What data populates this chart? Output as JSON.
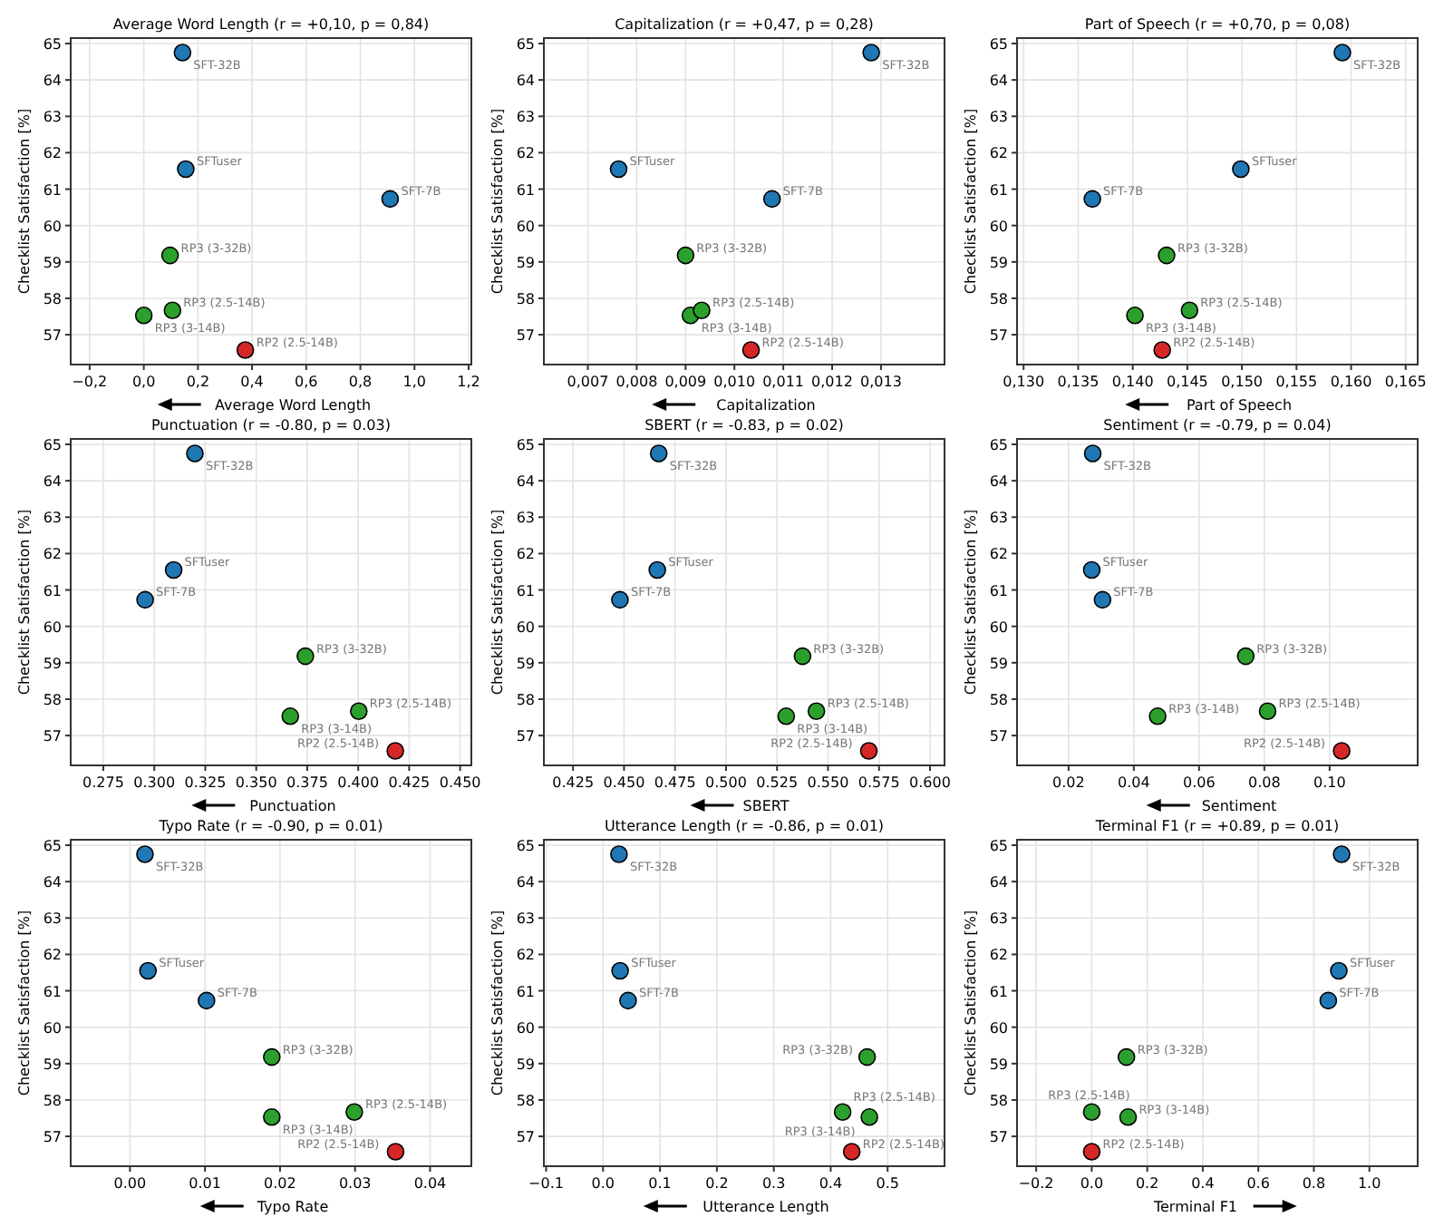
{
  "chart_data": [
    {
      "type": "scatter",
      "title": "Average Word Length   (r = +0,10, p = 0,84)",
      "xlabel": "Average Word Length",
      "ylabel": "Checklist Satisfaction [%]",
      "marker": "circle",
      "grid": true,
      "xlim": [
        -0.27,
        1.21
      ],
      "xticks": [
        {
          "value": -0.2,
          "label": "−0,2"
        },
        {
          "value": 0,
          "label": "0,0"
        },
        {
          "value": 0.2,
          "label": "0,2"
        },
        {
          "value": 0.4,
          "label": "0,4"
        },
        {
          "value": 0.6,
          "label": "0,6"
        },
        {
          "value": 0.8,
          "label": "0,8"
        },
        {
          "value": 1,
          "label": "1,0"
        },
        {
          "value": 1.2,
          "label": "1,2"
        }
      ],
      "ylim": [
        56.18,
        65.15
      ],
      "yticks": [
        57,
        58,
        59,
        60,
        61,
        62,
        63,
        64,
        65
      ],
      "series": [
        {
          "x": [
            0.143,
            0.155,
            0.91,
            0.097,
            0.0,
            0.106,
            0.375
          ],
          "values": [
            64.75,
            61.55,
            60.73,
            59.18,
            57.53,
            57.67,
            56.58
          ],
          "colors": [
            "#1f77b4",
            "#1f77b4",
            "#1f77b4",
            "#2ca02c",
            "#2ca02c",
            "#2ca02c",
            "#d62728"
          ]
        }
      ],
      "annotations": [
        {
          "text": "SFT-32B",
          "x": 0.143,
          "y": 64.75
        },
        {
          "text": "SFTuser",
          "x": 0.155,
          "y": 61.55
        },
        {
          "text": "SFT-7B",
          "x": 0.91,
          "y": 60.73
        },
        {
          "text": "RP3 (3-32B)",
          "x": 0.097,
          "y": 59.18
        },
        {
          "text": "RP3 (3-14B)",
          "x": 0.0,
          "y": 57.53
        },
        {
          "text": "RP3 (2.5-14B)",
          "x": 0.106,
          "y": 57.67
        },
        {
          "text": "RP2 (2.5-14B)",
          "x": 0.375,
          "y": 56.58
        }
      ]
    },
    {
      "type": "scatter",
      "title": "Capitalization   (r = +0,47, p = 0,28)",
      "xlabel": "Capitalization",
      "ylabel": "Checklist Satisfaction [%]",
      "marker": "circle",
      "grid": true,
      "xlim": [
        0.0061,
        0.0143
      ],
      "xticks": [
        {
          "value": 0.007,
          "label": "0,007"
        },
        {
          "value": 0.008,
          "label": "0,008"
        },
        {
          "value": 0.009,
          "label": "0,009"
        },
        {
          "value": 0.01,
          "label": "0,010"
        },
        {
          "value": 0.011,
          "label": "0,011"
        },
        {
          "value": 0.012,
          "label": "0,012"
        },
        {
          "value": 0.013,
          "label": "0,013"
        }
      ],
      "ylim": [
        56.18,
        65.15
      ],
      "yticks": [
        57,
        58,
        59,
        60,
        61,
        62,
        63,
        64,
        65
      ],
      "series": [
        {
          "x": [
            0.0128,
            0.00763,
            0.01077,
            0.009,
            0.0091,
            0.00933,
            0.01034
          ],
          "values": [
            64.75,
            61.55,
            60.73,
            59.18,
            57.53,
            57.67,
            56.58
          ],
          "colors": [
            "#1f77b4",
            "#1f77b4",
            "#1f77b4",
            "#2ca02c",
            "#2ca02c",
            "#2ca02c",
            "#d62728"
          ]
        }
      ],
      "annotations": [
        {
          "text": "SFT-32B",
          "x": 0.0128,
          "y": 64.75
        },
        {
          "text": "SFTuser",
          "x": 0.00763,
          "y": 61.55
        },
        {
          "text": "SFT-7B",
          "x": 0.01077,
          "y": 60.73
        },
        {
          "text": "RP3 (3-32B)",
          "x": 0.009,
          "y": 59.18
        },
        {
          "text": "RP3 (3-14B)",
          "x": 0.0091,
          "y": 57.53
        },
        {
          "text": "RP3 (2.5-14B)",
          "x": 0.00933,
          "y": 57.67
        },
        {
          "text": "RP2 (2.5-14B)",
          "x": 0.01034,
          "y": 56.58
        }
      ]
    },
    {
      "type": "scatter",
      "title": "Part of Speech   (r = +0,70, p = 0,08)",
      "xlabel": "Part of Speech",
      "ylabel": "Checklist Satisfaction [%]",
      "marker": "circle",
      "grid": true,
      "xlim": [
        0.1294,
        0.1661
      ],
      "xticks": [
        {
          "value": 0.13,
          "label": "0,130"
        },
        {
          "value": 0.135,
          "label": "0,135"
        },
        {
          "value": 0.14,
          "label": "0,140"
        },
        {
          "value": 0.145,
          "label": "0,145"
        },
        {
          "value": 0.15,
          "label": "0,150"
        },
        {
          "value": 0.155,
          "label": "0,155"
        },
        {
          "value": 0.16,
          "label": "0,160"
        },
        {
          "value": 0.165,
          "label": "0,165"
        }
      ],
      "ylim": [
        56.18,
        65.15
      ],
      "yticks": [
        57,
        58,
        59,
        60,
        61,
        62,
        63,
        64,
        65
      ],
      "series": [
        {
          "x": [
            0.1592,
            0.1499,
            0.1363,
            0.1431,
            0.1402,
            0.1452,
            0.1427
          ],
          "values": [
            64.75,
            61.55,
            60.73,
            59.18,
            57.53,
            57.67,
            56.58
          ],
          "colors": [
            "#1f77b4",
            "#1f77b4",
            "#1f77b4",
            "#2ca02c",
            "#2ca02c",
            "#2ca02c",
            "#d62728"
          ]
        }
      ],
      "annotations": [
        {
          "text": "SFT-32B",
          "x": 0.1592,
          "y": 64.75
        },
        {
          "text": "SFTuser",
          "x": 0.1499,
          "y": 61.55
        },
        {
          "text": "SFT-7B",
          "x": 0.1363,
          "y": 60.73
        },
        {
          "text": "RP3 (3-32B)",
          "x": 0.1431,
          "y": 59.18
        },
        {
          "text": "RP3 (3-14B)",
          "x": 0.1402,
          "y": 57.53
        },
        {
          "text": "RP3 (2.5-14B)",
          "x": 0.1452,
          "y": 57.67
        },
        {
          "text": "RP2 (2.5-14B)",
          "x": 0.1427,
          "y": 56.58
        }
      ]
    },
    {
      "type": "scatter",
      "title": "Punctuation   (r = -0.80, p = 0.03)",
      "xlabel": "Punctuation",
      "ylabel": "Checklist Satisfaction [%]",
      "marker": "circle",
      "grid": true,
      "xlim": [
        0.259,
        0.4555
      ],
      "xticks": [
        0.275,
        {
          "value": 0.3,
          "label": "0.300"
        },
        0.325,
        {
          "value": 0.35,
          "label": "0.350"
        },
        0.375,
        {
          "value": 0.4,
          "label": "0.400"
        },
        0.425,
        {
          "value": 0.45,
          "label": "0.450"
        }
      ],
      "ylim": [
        56.18,
        65.15
      ],
      "yticks": [
        57,
        58,
        59,
        60,
        61,
        62,
        63,
        64,
        65
      ],
      "series": [
        {
          "x": [
            0.3199,
            0.3095,
            0.2955,
            0.3741,
            0.3667,
            0.4003,
            0.4182
          ],
          "values": [
            64.75,
            61.55,
            60.73,
            59.18,
            57.53,
            57.67,
            56.58
          ],
          "colors": [
            "#1f77b4",
            "#1f77b4",
            "#1f77b4",
            "#2ca02c",
            "#2ca02c",
            "#2ca02c",
            "#d62728"
          ]
        }
      ],
      "annotations": [
        {
          "text": "SFT-32B",
          "x": 0.3199,
          "y": 64.75
        },
        {
          "text": "SFTuser",
          "x": 0.3095,
          "y": 61.55
        },
        {
          "text": "SFT-7B",
          "x": 0.2955,
          "y": 60.73
        },
        {
          "text": "RP3 (3-32B)",
          "x": 0.3741,
          "y": 59.18
        },
        {
          "text": "RP3 (3-14B)",
          "x": 0.3667,
          "y": 57.53
        },
        {
          "text": "RP3 (2.5-14B)",
          "x": 0.4003,
          "y": 57.67
        },
        {
          "text": "RP2 (2.5-14B)",
          "x": 0.4182,
          "y": 56.58
        }
      ]
    },
    {
      "type": "scatter",
      "title": "SBERT   (r = -0.83, p = 0.02)",
      "xlabel": "SBERT",
      "ylabel": "Checklist Satisfaction [%]",
      "marker": "circle",
      "grid": true,
      "xlim": [
        0.4107,
        0.6071
      ],
      "xticks": [
        0.425,
        {
          "value": 0.45,
          "label": "0.450"
        },
        0.475,
        {
          "value": 0.5,
          "label": "0.500"
        },
        0.525,
        {
          "value": 0.55,
          "label": "0.550"
        },
        0.575,
        {
          "value": 0.6,
          "label": "0.600"
        }
      ],
      "ylim": [
        56.18,
        65.15
      ],
      "yticks": [
        57,
        58,
        59,
        60,
        61,
        62,
        63,
        64,
        65
      ],
      "series": [
        {
          "x": [
            0.467,
            0.4663,
            0.448,
            0.5375,
            0.5295,
            0.5443,
            0.57
          ],
          "values": [
            64.75,
            61.55,
            60.73,
            59.18,
            57.53,
            57.67,
            56.58
          ],
          "colors": [
            "#1f77b4",
            "#1f77b4",
            "#1f77b4",
            "#2ca02c",
            "#2ca02c",
            "#2ca02c",
            "#d62728"
          ]
        }
      ],
      "annotations": [
        {
          "text": "SFT-32B",
          "x": 0.467,
          "y": 64.75
        },
        {
          "text": "SFTuser",
          "x": 0.4663,
          "y": 61.55
        },
        {
          "text": "SFT-7B",
          "x": 0.448,
          "y": 60.73
        },
        {
          "text": "RP3 (3-32B)",
          "x": 0.5375,
          "y": 59.18
        },
        {
          "text": "RP3 (3-14B)",
          "x": 0.5295,
          "y": 57.53
        },
        {
          "text": "RP3 (2.5-14B)",
          "x": 0.5443,
          "y": 57.67
        },
        {
          "text": "RP2 (2.5-14B)",
          "x": 0.57,
          "y": 56.58
        }
      ]
    },
    {
      "type": "scatter",
      "title": "Sentiment   (r = -0.79, p = 0.04)",
      "xlabel": "Sentiment",
      "ylabel": "Checklist Satisfaction [%]",
      "marker": "circle",
      "grid": true,
      "xlim": [
        0.0042,
        0.127
      ],
      "xticks": [
        0.02,
        0.04,
        0.06,
        0.08,
        {
          "value": 0.1,
          "label": "0.10"
        }
      ],
      "ylim": [
        56.18,
        65.15
      ],
      "yticks": [
        57,
        58,
        59,
        60,
        61,
        62,
        63,
        64,
        65
      ],
      "series": [
        {
          "x": [
            0.0274,
            0.0271,
            0.0304,
            0.0743,
            0.0473,
            0.081,
            0.1037
          ],
          "values": [
            64.75,
            61.55,
            60.73,
            59.18,
            57.53,
            57.67,
            56.58
          ],
          "colors": [
            "#1f77b4",
            "#1f77b4",
            "#1f77b4",
            "#2ca02c",
            "#2ca02c",
            "#2ca02c",
            "#d62728"
          ]
        }
      ],
      "annotations": [
        {
          "text": "SFT-32B",
          "x": 0.0274,
          "y": 64.75
        },
        {
          "text": "SFTuser",
          "x": 0.0271,
          "y": 61.55
        },
        {
          "text": "SFT-7B",
          "x": 0.0304,
          "y": 60.73
        },
        {
          "text": "RP3 (3-32B)",
          "x": 0.0743,
          "y": 59.18
        },
        {
          "text": "RP3 (3-14B)",
          "x": 0.0473,
          "y": 57.53
        },
        {
          "text": "RP3 (2.5-14B)",
          "x": 0.081,
          "y": 57.67
        },
        {
          "text": "RP2 (2.5-14B)",
          "x": 0.1037,
          "y": 56.58
        }
      ]
    },
    {
      "type": "scatter",
      "title": "Typo Rate   (r = -0.90, p = 0.01)",
      "xlabel": "Typo Rate",
      "ylabel": "Checklist Satisfaction [%]",
      "marker": "circle",
      "grid": true,
      "xlim": [
        -0.0079,
        0.0455
      ],
      "xticks": [
        {
          "value": 0,
          "label": "0.00"
        },
        0.01,
        0.02,
        0.03,
        0.04
      ],
      "ylim": [
        56.18,
        65.15
      ],
      "yticks": [
        57,
        58,
        59,
        60,
        61,
        62,
        63,
        64,
        65
      ],
      "series": [
        {
          "x": [
            0.002,
            0.0024,
            0.0102,
            0.0189,
            0.0189,
            0.0299,
            0.0354
          ],
          "values": [
            64.75,
            61.55,
            60.73,
            59.18,
            57.53,
            57.67,
            56.58
          ],
          "colors": [
            "#1f77b4",
            "#1f77b4",
            "#1f77b4",
            "#2ca02c",
            "#2ca02c",
            "#2ca02c",
            "#d62728"
          ]
        }
      ],
      "annotations": [
        {
          "text": "SFT-32B",
          "x": 0.002,
          "y": 64.75
        },
        {
          "text": "SFTuser",
          "x": 0.0024,
          "y": 61.55
        },
        {
          "text": "SFT-7B",
          "x": 0.0102,
          "y": 60.73
        },
        {
          "text": "RP3 (3-32B)",
          "x": 0.0189,
          "y": 59.18
        },
        {
          "text": "RP3 (3-14B)",
          "x": 0.0189,
          "y": 57.53
        },
        {
          "text": "RP3 (2.5-14B)",
          "x": 0.0299,
          "y": 57.67
        },
        {
          "text": "RP2 (2.5-14B)",
          "x": 0.0354,
          "y": 56.58
        }
      ]
    },
    {
      "type": "scatter",
      "title": "Utterance Length   (r = -0.86, p = 0.01)",
      "xlabel": "Utterance Length",
      "ylabel": "Checklist Satisfaction [%]",
      "marker": "circle",
      "grid": true,
      "xlim": [
        -0.104,
        0.6
      ],
      "xticks": [
        {
          "value": -0.1,
          "label": "−0.1"
        },
        {
          "value": 0,
          "label": "0.0"
        },
        0.1,
        0.2,
        0.3,
        0.4,
        0.5
      ],
      "ylim": [
        56.18,
        65.15
      ],
      "yticks": [
        57,
        58,
        59,
        60,
        61,
        62,
        63,
        64,
        65
      ],
      "series": [
        {
          "x": [
            0.028,
            0.03,
            0.044,
            0.464,
            0.468,
            0.421,
            0.437
          ],
          "values": [
            64.75,
            61.55,
            60.73,
            59.18,
            57.53,
            57.67,
            56.58
          ],
          "colors": [
            "#1f77b4",
            "#1f77b4",
            "#1f77b4",
            "#2ca02c",
            "#2ca02c",
            "#2ca02c",
            "#d62728"
          ]
        }
      ],
      "annotations": [
        {
          "text": "SFT-32B",
          "x": 0.028,
          "y": 64.75
        },
        {
          "text": "SFTuser",
          "x": 0.03,
          "y": 61.55
        },
        {
          "text": "SFT-7B",
          "x": 0.044,
          "y": 60.73
        },
        {
          "text": "RP3 (3-32B)",
          "x": 0.464,
          "y": 59.18
        },
        {
          "text": "RP3 (3-14B)",
          "x": 0.468,
          "y": 57.53
        },
        {
          "text": "RP3 (2.5-14B)",
          "x": 0.421,
          "y": 57.67
        },
        {
          "text": "RP2 (2.5-14B)",
          "x": 0.437,
          "y": 56.58
        }
      ]
    },
    {
      "type": "scatter",
      "title": "Terminal F1   (r = +0.89, p = 0.01)",
      "xlabel": "Terminal F1",
      "ylabel": "Checklist Satisfaction [%]",
      "marker": "circle",
      "grid": true,
      "xlim": [
        -0.269,
        1.174
      ],
      "xticks": [
        {
          "value": -0.2,
          "label": "−0.2"
        },
        {
          "value": 0,
          "label": "0.0"
        },
        0.2,
        0.4,
        0.6,
        0.8,
        {
          "value": 1,
          "label": "1.0"
        }
      ],
      "ylim": [
        56.18,
        65.15
      ],
      "yticks": [
        57,
        58,
        59,
        60,
        61,
        62,
        63,
        64,
        65
      ],
      "series": [
        {
          "x": [
            0.9,
            0.89,
            0.852,
            0.125,
            0.131,
            0.0,
            0.0
          ],
          "values": [
            64.75,
            61.55,
            60.73,
            59.18,
            57.53,
            57.67,
            56.58
          ],
          "colors": [
            "#1f77b4",
            "#1f77b4",
            "#1f77b4",
            "#2ca02c",
            "#2ca02c",
            "#2ca02c",
            "#d62728"
          ]
        }
      ],
      "annotations": [
        {
          "text": "SFT-32B",
          "x": 0.9,
          "y": 64.75
        },
        {
          "text": "SFTuser",
          "x": 0.89,
          "y": 61.55
        },
        {
          "text": "SFT-7B",
          "x": 0.852,
          "y": 60.73
        },
        {
          "text": "RP3 (3-32B)",
          "x": 0.125,
          "y": 59.18
        },
        {
          "text": "RP3 (3-14B)",
          "x": 0.131,
          "y": 57.53
        },
        {
          "text": "RP3 (2.5-14B)",
          "x": 0.0,
          "y": 57.67
        },
        {
          "text": "RP2 (2.5-14B)",
          "x": 0.0,
          "y": 56.58
        }
      ]
    }
  ]
}
